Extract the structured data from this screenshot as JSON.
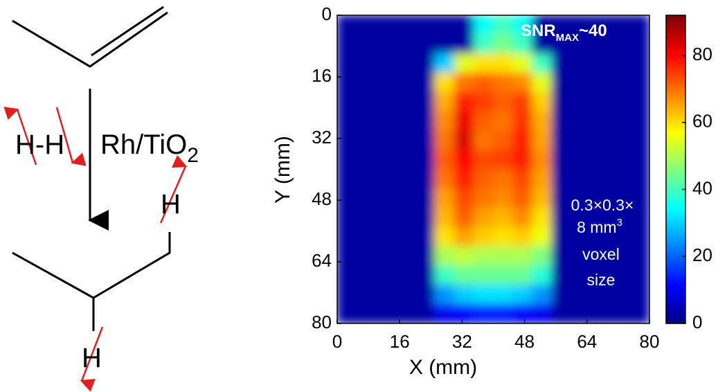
{
  "scheme": {
    "catalyst": "Rh/TiO",
    "catalyst_subscript": "2",
    "reagent": "H-H",
    "product_h_top": "H",
    "product_h_bottom": "H"
  },
  "chart_data": {
    "type": "heatmap",
    "xlabel": "X (mm)",
    "ylabel": "Y (mm)",
    "xlim": [
      0,
      80
    ],
    "ylim": [
      80,
      0
    ],
    "xticks": [
      0,
      16,
      32,
      48,
      64,
      80
    ],
    "yticks": [
      0,
      16,
      32,
      48,
      64,
      80
    ],
    "colormap": "jet",
    "clim": [
      0,
      92
    ],
    "cticks": [
      0,
      20,
      40,
      60,
      80
    ],
    "annotation_snr": {
      "main": "SNR",
      "subscript": "MAX",
      "suffix": "~40"
    },
    "annotation_voxel": {
      "line1": "0.3×0.3×",
      "line2": "8 mm",
      "line2_superscript": "3",
      "line3": "voxel",
      "line4": "size"
    },
    "x": [
      2.5,
      7.5,
      12.5,
      17.5,
      22.5,
      27.5,
      32.5,
      37.5,
      42.5,
      47.5,
      52.5,
      57.5,
      62.5,
      67.5,
      72.5,
      77.5
    ],
    "y": [
      2.5,
      7.5,
      12.5,
      17.5,
      22.5,
      27.5,
      32.5,
      37.5,
      42.5,
      47.5,
      52.5,
      57.5,
      62.5,
      67.5,
      72.5,
      77.5
    ],
    "z": [
      [
        3,
        3,
        3,
        3,
        3,
        3,
        3,
        35,
        40,
        35,
        3,
        3,
        3,
        3,
        3,
        3
      ],
      [
        3,
        3,
        3,
        3,
        3,
        3,
        3,
        40,
        45,
        40,
        3,
        3,
        3,
        3,
        3,
        3
      ],
      [
        3,
        3,
        3,
        3,
        3,
        30,
        55,
        60,
        60,
        55,
        40,
        3,
        3,
        3,
        3,
        3
      ],
      [
        3,
        3,
        3,
        3,
        3,
        60,
        70,
        72,
        70,
        68,
        55,
        3,
        3,
        3,
        3,
        3
      ],
      [
        3,
        3,
        3,
        3,
        3,
        65,
        78,
        75,
        72,
        75,
        62,
        3,
        3,
        3,
        3,
        3
      ],
      [
        3,
        3,
        3,
        3,
        3,
        68,
        82,
        72,
        70,
        76,
        65,
        3,
        3,
        3,
        3,
        3
      ],
      [
        3,
        3,
        3,
        3,
        3,
        70,
        84,
        70,
        72,
        78,
        66,
        3,
        3,
        3,
        3,
        3
      ],
      [
        3,
        3,
        3,
        3,
        3,
        72,
        80,
        74,
        75,
        78,
        68,
        3,
        3,
        3,
        3,
        3
      ],
      [
        3,
        3,
        3,
        3,
        3,
        70,
        78,
        72,
        70,
        74,
        66,
        3,
        3,
        3,
        3,
        3
      ],
      [
        3,
        3,
        3,
        3,
        3,
        66,
        74,
        70,
        68,
        72,
        64,
        3,
        3,
        3,
        3,
        3
      ],
      [
        3,
        3,
        3,
        3,
        3,
        64,
        72,
        66,
        64,
        68,
        60,
        3,
        3,
        3,
        3,
        3
      ],
      [
        3,
        3,
        3,
        3,
        3,
        60,
        66,
        62,
        60,
        62,
        56,
        3,
        3,
        3,
        3,
        3
      ],
      [
        3,
        3,
        3,
        3,
        3,
        50,
        52,
        50,
        50,
        50,
        46,
        3,
        3,
        3,
        3,
        3
      ],
      [
        3,
        3,
        3,
        3,
        3,
        40,
        44,
        44,
        44,
        44,
        38,
        3,
        3,
        3,
        3,
        3
      ],
      [
        3,
        3,
        3,
        3,
        3,
        25,
        30,
        32,
        32,
        30,
        25,
        3,
        3,
        3,
        3,
        3
      ],
      [
        3,
        3,
        3,
        3,
        3,
        10,
        12,
        14,
        14,
        12,
        10,
        3,
        3,
        3,
        3,
        3
      ]
    ]
  }
}
